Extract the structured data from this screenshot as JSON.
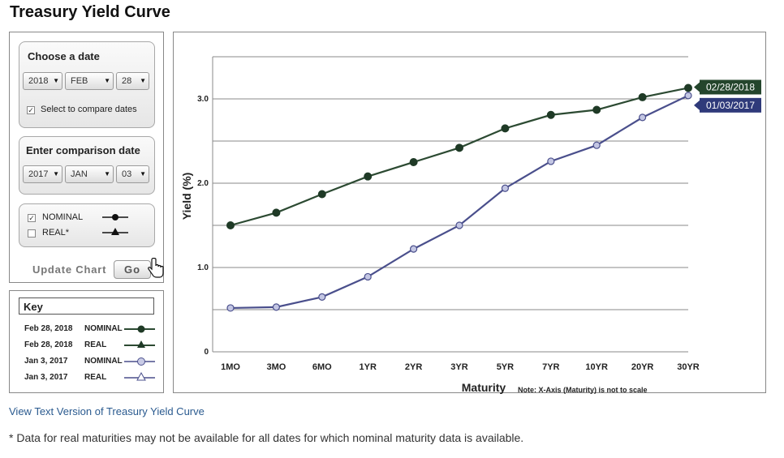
{
  "page_title": "Treasury Yield Curve",
  "date_chooser": {
    "title": "Choose a date",
    "year": "2018",
    "month": "FEB",
    "day": "28",
    "compare_checked": true,
    "compare_label": "Select to compare dates"
  },
  "comparison": {
    "title": "Enter comparison date",
    "year": "2017",
    "month": "JAN",
    "day": "03"
  },
  "type_options": [
    {
      "label": "NOMINAL",
      "checked": true,
      "marker": "circle"
    },
    {
      "label": "REAL*",
      "checked": false,
      "marker": "triangle"
    }
  ],
  "update": {
    "label": "Update Chart",
    "button": "Go"
  },
  "key": {
    "title": "Key",
    "items": [
      {
        "date": "Feb 28, 2018",
        "type": "NOMINAL",
        "color": "#2c4a32",
        "marker": "circle-filled"
      },
      {
        "date": "Feb 28, 2018",
        "type": "REAL",
        "color": "#2c4a32",
        "marker": "triangle-filled"
      },
      {
        "date": "Jan 3, 2017",
        "type": "NOMINAL",
        "color": "#4a4f8c",
        "marker": "circle-open"
      },
      {
        "date": "Jan 3, 2017",
        "type": "REAL",
        "color": "#4a4f8c",
        "marker": "triangle-open"
      }
    ]
  },
  "link_text": "View Text Version of Treasury Yield Curve",
  "footnote": "* Data for real maturities may not be available for all dates for which nominal maturity data is available.",
  "chart_data": {
    "type": "line",
    "xlabel": "Maturity",
    "x_note": "Note: X-Axis (Maturity) is not to scale",
    "ylabel": "Yield (%)",
    "categories": [
      "1MO",
      "3MO",
      "6MO",
      "1YR",
      "2YR",
      "3YR",
      "5YR",
      "7YR",
      "10YR",
      "20YR",
      "30YR"
    ],
    "y_ticks": [
      "0",
      "1.0",
      "2.0",
      "3.0"
    ],
    "ylim": [
      0,
      3.5
    ],
    "grid": true,
    "series": [
      {
        "name": "02/28/2018",
        "color": "#2c4a32",
        "marker": "filled",
        "values": [
          1.5,
          1.65,
          1.87,
          2.08,
          2.25,
          2.42,
          2.65,
          2.81,
          2.87,
          3.02,
          3.13
        ]
      },
      {
        "name": "01/03/2017",
        "color": "#4a4f8c",
        "marker": "open",
        "values": [
          0.52,
          0.53,
          0.65,
          0.89,
          1.22,
          1.5,
          1.94,
          2.26,
          2.45,
          2.78,
          3.04
        ]
      }
    ]
  }
}
